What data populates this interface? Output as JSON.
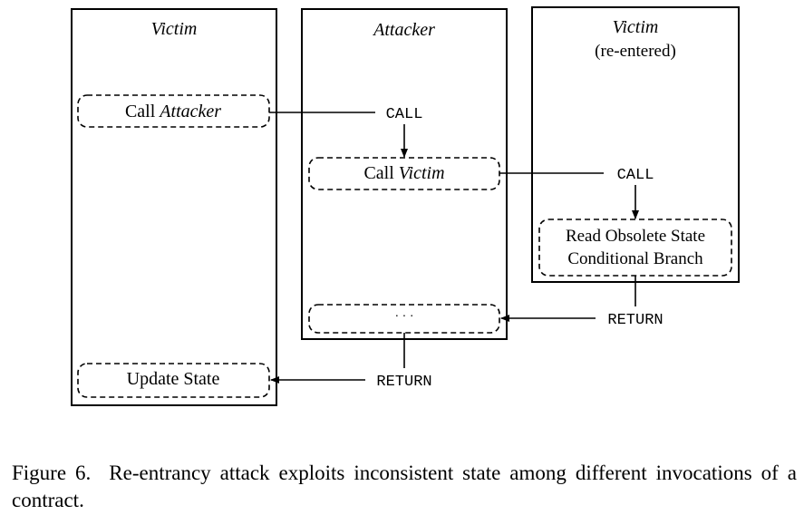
{
  "columns": {
    "victim": {
      "title": "Victim"
    },
    "attacker": {
      "title": "Attacker"
    },
    "victim_reentered": {
      "title": "Victim",
      "subtitle": "(re-entered)"
    }
  },
  "boxes": {
    "call_attacker": {
      "prefix": "Call ",
      "target": "Attacker"
    },
    "call_victim": {
      "prefix": "Call ",
      "target": "Victim"
    },
    "read_obsolete": {
      "line1": "Read Obsolete State",
      "line2": "Conditional Branch"
    },
    "ellipsis": {
      "text": "· · ·"
    },
    "update_state": {
      "text": "Update State"
    }
  },
  "flow_labels": {
    "call_1": "CALL",
    "call_2": "CALL",
    "return_1": "RETURN",
    "return_2": "RETURN"
  },
  "caption": {
    "label": "Figure 6.",
    "text": "Re-entrancy attack exploits inconsistent state among different invocations of a contract."
  }
}
